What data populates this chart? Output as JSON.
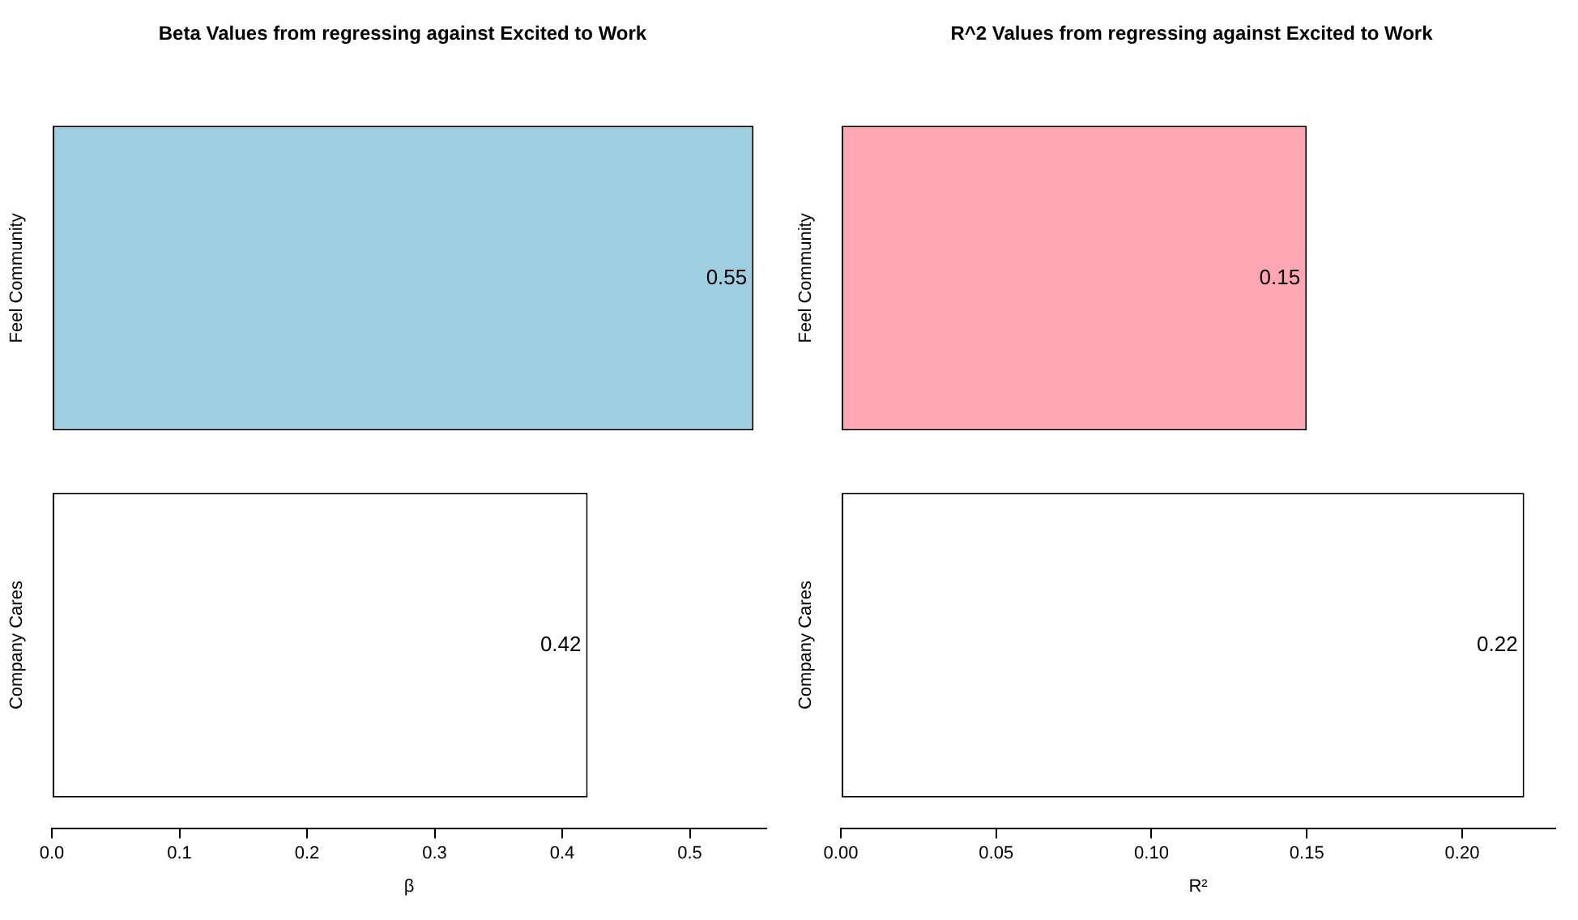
{
  "chart_data": [
    {
      "type": "bar",
      "orientation": "horizontal",
      "title": "Beta Values from regressing against Excited to Work",
      "xlabel": "β",
      "categories": [
        "Feel Community",
        "Company Cares"
      ],
      "values": [
        0.55,
        0.42
      ],
      "colors": [
        "#9ecfe0",
        "#ffffff"
      ],
      "xlim": [
        0,
        0.56
      ],
      "xticks": [
        {
          "value": 0,
          "label": "0.0"
        },
        0.1,
        0.2,
        0.3,
        0.4,
        0.5
      ],
      "data_labels": true,
      "grid": false,
      "legend": false
    },
    {
      "type": "bar",
      "orientation": "horizontal",
      "title": "R^2 Values from regressing against Excited to Work",
      "xlabel": "R²",
      "categories": [
        "Feel Community",
        "Company Cares"
      ],
      "values": [
        0.15,
        0.22
      ],
      "colors": [
        "#ffa6b5",
        "#ffffff"
      ],
      "xlim": [
        0,
        0.23
      ],
      "xticks": [
        {
          "value": 0,
          "label": "0.00"
        },
        0.05,
        {
          "value": 0.1,
          "label": "0.10"
        },
        0.15,
        {
          "value": 0.2,
          "label": "0.20"
        }
      ],
      "data_labels": true,
      "grid": false,
      "legend": false
    }
  ]
}
